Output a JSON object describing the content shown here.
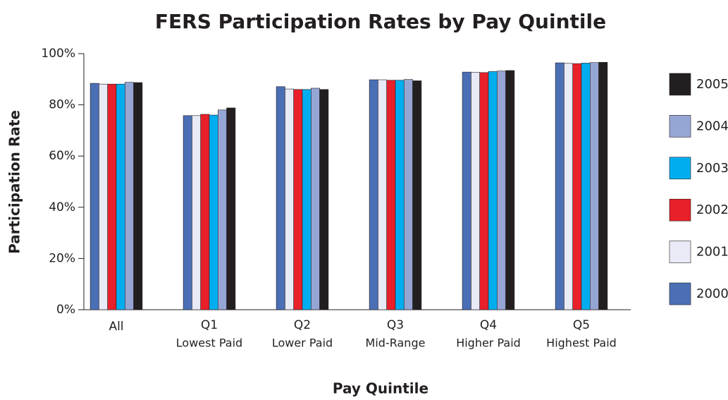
{
  "chart_data": {
    "type": "bar",
    "title": "FERS Participation Rates by Pay Quintile",
    "xlabel": "Pay Quintile",
    "ylabel": "Participation Rate",
    "categories": [
      "All",
      "Q1",
      "Q2",
      "Q3",
      "Q4",
      "Q5"
    ],
    "subcategories": [
      null,
      "Lowest Paid",
      "Lower Paid",
      "Mid-Range",
      "Higher Paid",
      "Highest Paid"
    ],
    "series": [
      {
        "name": "2000",
        "color": "#4a6fb5",
        "values": [
          88.4,
          75.8,
          87.1,
          89.8,
          92.8,
          96.4
        ]
      },
      {
        "name": "2001",
        "color": "#e8eaf6",
        "values": [
          88.1,
          75.8,
          86.2,
          89.8,
          92.7,
          96.2
        ]
      },
      {
        "name": "2002",
        "color": "#e8202a",
        "values": [
          88.1,
          76.3,
          86.0,
          89.6,
          92.6,
          96.1
        ]
      },
      {
        "name": "2003",
        "color": "#00aeef",
        "values": [
          88.1,
          76.0,
          86.0,
          89.6,
          93.0,
          96.3
        ]
      },
      {
        "name": "2004",
        "color": "#96a6d4",
        "values": [
          88.8,
          78.0,
          86.5,
          89.9,
          93.2,
          96.5
        ]
      },
      {
        "name": "2005",
        "color": "#231f20",
        "values": [
          88.7,
          78.8,
          86.0,
          89.4,
          93.4,
          96.6
        ]
      }
    ],
    "ylim": [
      0,
      100
    ],
    "yticks": [
      {
        "value": 0,
        "label": "0%"
      },
      {
        "value": 20,
        "label": "20%"
      },
      {
        "value": 40,
        "label": "40%"
      },
      {
        "value": 60,
        "label": "60%"
      },
      {
        "value": 80,
        "label": "80%"
      },
      {
        "value": 100,
        "label": "100%"
      }
    ],
    "grid": false,
    "legend": "right"
  }
}
